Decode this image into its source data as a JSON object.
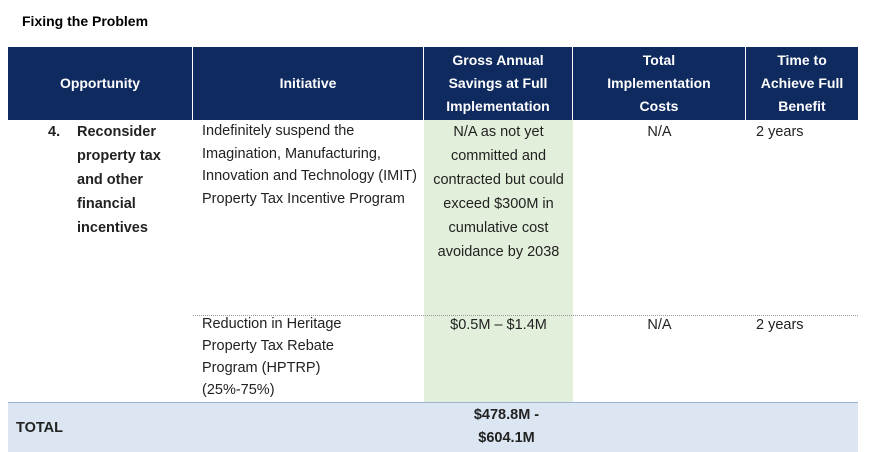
{
  "header": {
    "title": "Fixing the Problem"
  },
  "table": {
    "columns": [
      "Opportunity",
      "Initiative",
      "Gross Annual Savings at Full Implementation",
      "Total Implementation Costs",
      "Time to Achieve Full Benefit"
    ],
    "rows": [
      {
        "number": "4.",
        "opportunity": "Reconsider property tax and other financial incentives",
        "initiative": "Indefinitely suspend the Imagination, Manufacturing, Innovation and Technology (IMIT) Property Tax Incentive Program",
        "savings": "N/A as not yet committed and contracted but could exceed $300M in cumulative cost avoidance by 2038",
        "costs": "N/A",
        "time": "2 years"
      },
      {
        "initiative": "Reduction in Heritage Property Tax Rebate Program (HPTRP) (25%-75%)",
        "savings": "$0.5M – $1.4M",
        "costs": "N/A",
        "time": "2 years"
      }
    ],
    "total": {
      "label": "TOTAL",
      "savings": "$478.8M - $604.1M"
    }
  }
}
